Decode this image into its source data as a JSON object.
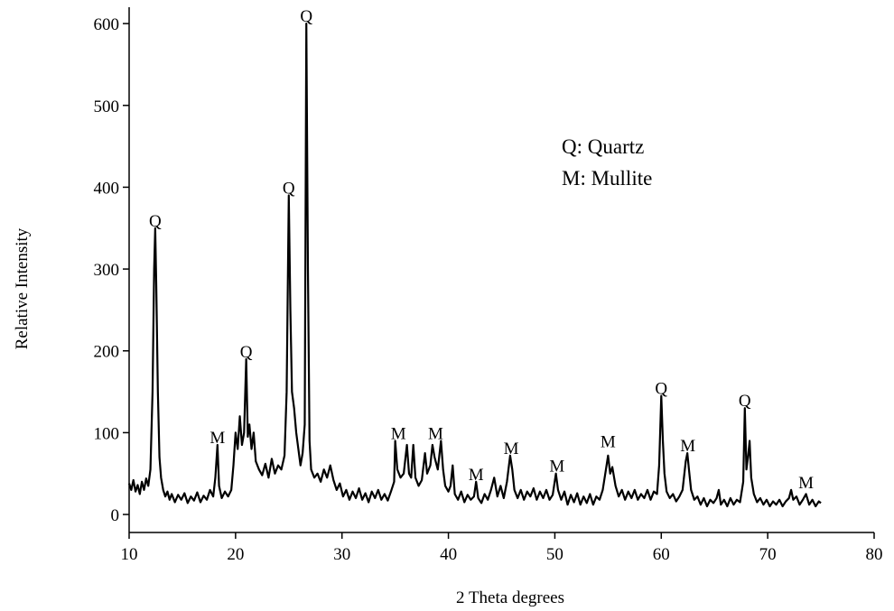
{
  "chart_data": {
    "type": "line",
    "color": "#000000",
    "x_label": "2 Theta degrees",
    "y_label": "Relative Intensity",
    "xlim": [
      10,
      80
    ],
    "xticks": [
      10,
      20,
      30,
      40,
      50,
      60,
      70,
      80
    ],
    "ylim": [
      -22,
      620
    ],
    "yticks": [
      0,
      100,
      200,
      300,
      400,
      500,
      600
    ],
    "key": [
      "Q: Quartz",
      "M: Mullite"
    ],
    "annotations": [
      {
        "text": "Q",
        "x": 12.45,
        "y": 350
      },
      {
        "text": "M",
        "x": 18.3,
        "y": 85
      },
      {
        "text": "Q",
        "x": 21,
        "y": 190
      },
      {
        "text": "Q",
        "x": 25,
        "y": 390
      },
      {
        "text": "Q",
        "x": 26.65,
        "y": 600
      },
      {
        "text": "M",
        "x": 35.3,
        "y": 90
      },
      {
        "text": "M",
        "x": 38.8,
        "y": 90
      },
      {
        "text": "M",
        "x": 42.6,
        "y": 40
      },
      {
        "text": "M",
        "x": 45.9,
        "y": 72
      },
      {
        "text": "M",
        "x": 50.2,
        "y": 50
      },
      {
        "text": "M",
        "x": 55,
        "y": 80
      },
      {
        "text": "Q",
        "x": 60,
        "y": 145
      },
      {
        "text": "M",
        "x": 62.5,
        "y": 75
      },
      {
        "text": "Q",
        "x": 67.85,
        "y": 130
      },
      {
        "text": "M",
        "x": 73.6,
        "y": 30
      }
    ],
    "x": [
      10,
      10.2,
      10.4,
      10.6,
      10.8,
      11,
      11.2,
      11.4,
      11.6,
      11.8,
      12,
      12.2,
      12.35,
      12.45,
      12.55,
      12.7,
      12.85,
      13,
      13.2,
      13.4,
      13.6,
      13.8,
      14,
      14.3,
      14.6,
      14.9,
      15.2,
      15.5,
      15.8,
      16.1,
      16.4,
      16.7,
      17,
      17.3,
      17.6,
      17.9,
      18.1,
      18.3,
      18.45,
      18.7,
      19,
      19.3,
      19.6,
      19.8,
      20,
      20.2,
      20.4,
      20.6,
      20.8,
      21,
      21.15,
      21.3,
      21.5,
      21.7,
      21.9,
      22.2,
      22.5,
      22.8,
      23.1,
      23.4,
      23.7,
      24,
      24.3,
      24.6,
      24.8,
      25,
      25.15,
      25.3,
      25.5,
      25.7,
      25.9,
      26.1,
      26.3,
      26.5,
      26.65,
      26.8,
      26.95,
      27.1,
      27.4,
      27.7,
      28,
      28.3,
      28.6,
      28.9,
      29.2,
      29.5,
      29.8,
      30.1,
      30.4,
      30.7,
      31,
      31.3,
      31.6,
      31.9,
      32.2,
      32.5,
      32.8,
      33.1,
      33.4,
      33.7,
      34,
      34.3,
      34.6,
      34.9,
      35,
      35.2,
      35.5,
      35.8,
      36.1,
      36.3,
      36.5,
      36.7,
      36.9,
      37.2,
      37.5,
      37.8,
      38,
      38.3,
      38.5,
      38.7,
      39,
      39.3,
      39.5,
      39.7,
      40,
      40.2,
      40.4,
      40.6,
      40.9,
      41.2,
      41.5,
      41.8,
      42.1,
      42.4,
      42.6,
      42.8,
      43.1,
      43.4,
      43.7,
      44,
      44.3,
      44.6,
      44.9,
      45.2,
      45.5,
      45.8,
      46,
      46.2,
      46.5,
      46.8,
      47.1,
      47.4,
      47.7,
      48,
      48.3,
      48.6,
      48.9,
      49.2,
      49.5,
      49.8,
      50.1,
      50.3,
      50.6,
      50.9,
      51.2,
      51.5,
      51.8,
      52.1,
      52.4,
      52.7,
      53,
      53.3,
      53.6,
      53.9,
      54.2,
      54.5,
      54.8,
      55,
      55.2,
      55.4,
      55.7,
      56,
      56.3,
      56.6,
      56.9,
      57.2,
      57.5,
      57.8,
      58.1,
      58.4,
      58.7,
      59,
      59.3,
      59.6,
      59.8,
      60,
      60.15,
      60.3,
      60.5,
      60.8,
      61.1,
      61.4,
      61.7,
      62,
      62.3,
      62.45,
      62.6,
      62.8,
      63.1,
      63.4,
      63.7,
      64,
      64.3,
      64.6,
      64.9,
      65.2,
      65.4,
      65.6,
      65.9,
      66.2,
      66.5,
      66.8,
      67.1,
      67.4,
      67.7,
      67.85,
      68,
      68.15,
      68.3,
      68.45,
      68.7,
      69,
      69.3,
      69.6,
      69.9,
      70.2,
      70.5,
      70.8,
      71.1,
      71.4,
      71.7,
      72,
      72.2,
      72.4,
      72.7,
      73,
      73.3,
      73.6,
      73.9,
      74.2,
      74.5,
      74.8,
      75
    ],
    "values": [
      38,
      30,
      42,
      28,
      36,
      25,
      40,
      30,
      44,
      35,
      55,
      150,
      300,
      350,
      280,
      150,
      70,
      45,
      30,
      22,
      28,
      18,
      25,
      15,
      24,
      18,
      26,
      14,
      22,
      17,
      27,
      15,
      23,
      18,
      30,
      22,
      45,
      85,
      35,
      20,
      28,
      22,
      30,
      60,
      100,
      80,
      120,
      85,
      100,
      190,
      95,
      110,
      80,
      100,
      65,
      55,
      48,
      62,
      45,
      68,
      50,
      60,
      55,
      72,
      150,
      390,
      250,
      150,
      130,
      100,
      80,
      60,
      75,
      110,
      600,
      300,
      90,
      55,
      45,
      50,
      40,
      55,
      45,
      60,
      42,
      30,
      38,
      22,
      30,
      18,
      28,
      20,
      32,
      18,
      26,
      15,
      28,
      20,
      30,
      18,
      25,
      17,
      28,
      40,
      90,
      55,
      45,
      50,
      85,
      50,
      45,
      85,
      45,
      35,
      42,
      75,
      50,
      60,
      85,
      70,
      55,
      90,
      55,
      35,
      28,
      35,
      60,
      25,
      18,
      28,
      15,
      24,
      18,
      22,
      40,
      20,
      14,
      25,
      18,
      30,
      45,
      22,
      35,
      20,
      40,
      72,
      55,
      30,
      20,
      30,
      18,
      28,
      22,
      32,
      18,
      28,
      20,
      30,
      18,
      24,
      50,
      30,
      18,
      28,
      12,
      24,
      15,
      26,
      12,
      22,
      14,
      25,
      12,
      22,
      18,
      30,
      55,
      72,
      50,
      58,
      35,
      22,
      30,
      18,
      28,
      20,
      30,
      18,
      25,
      20,
      30,
      18,
      28,
      25,
      60,
      145,
      90,
      50,
      28,
      20,
      25,
      16,
      22,
      30,
      65,
      75,
      55,
      30,
      18,
      22,
      12,
      20,
      10,
      18,
      14,
      20,
      30,
      12,
      18,
      10,
      20,
      12,
      18,
      15,
      40,
      130,
      55,
      70,
      90,
      45,
      25,
      15,
      20,
      12,
      18,
      10,
      16,
      12,
      18,
      10,
      16,
      20,
      30,
      18,
      22,
      12,
      18,
      25,
      12,
      18,
      10,
      16,
      14
    ]
  }
}
